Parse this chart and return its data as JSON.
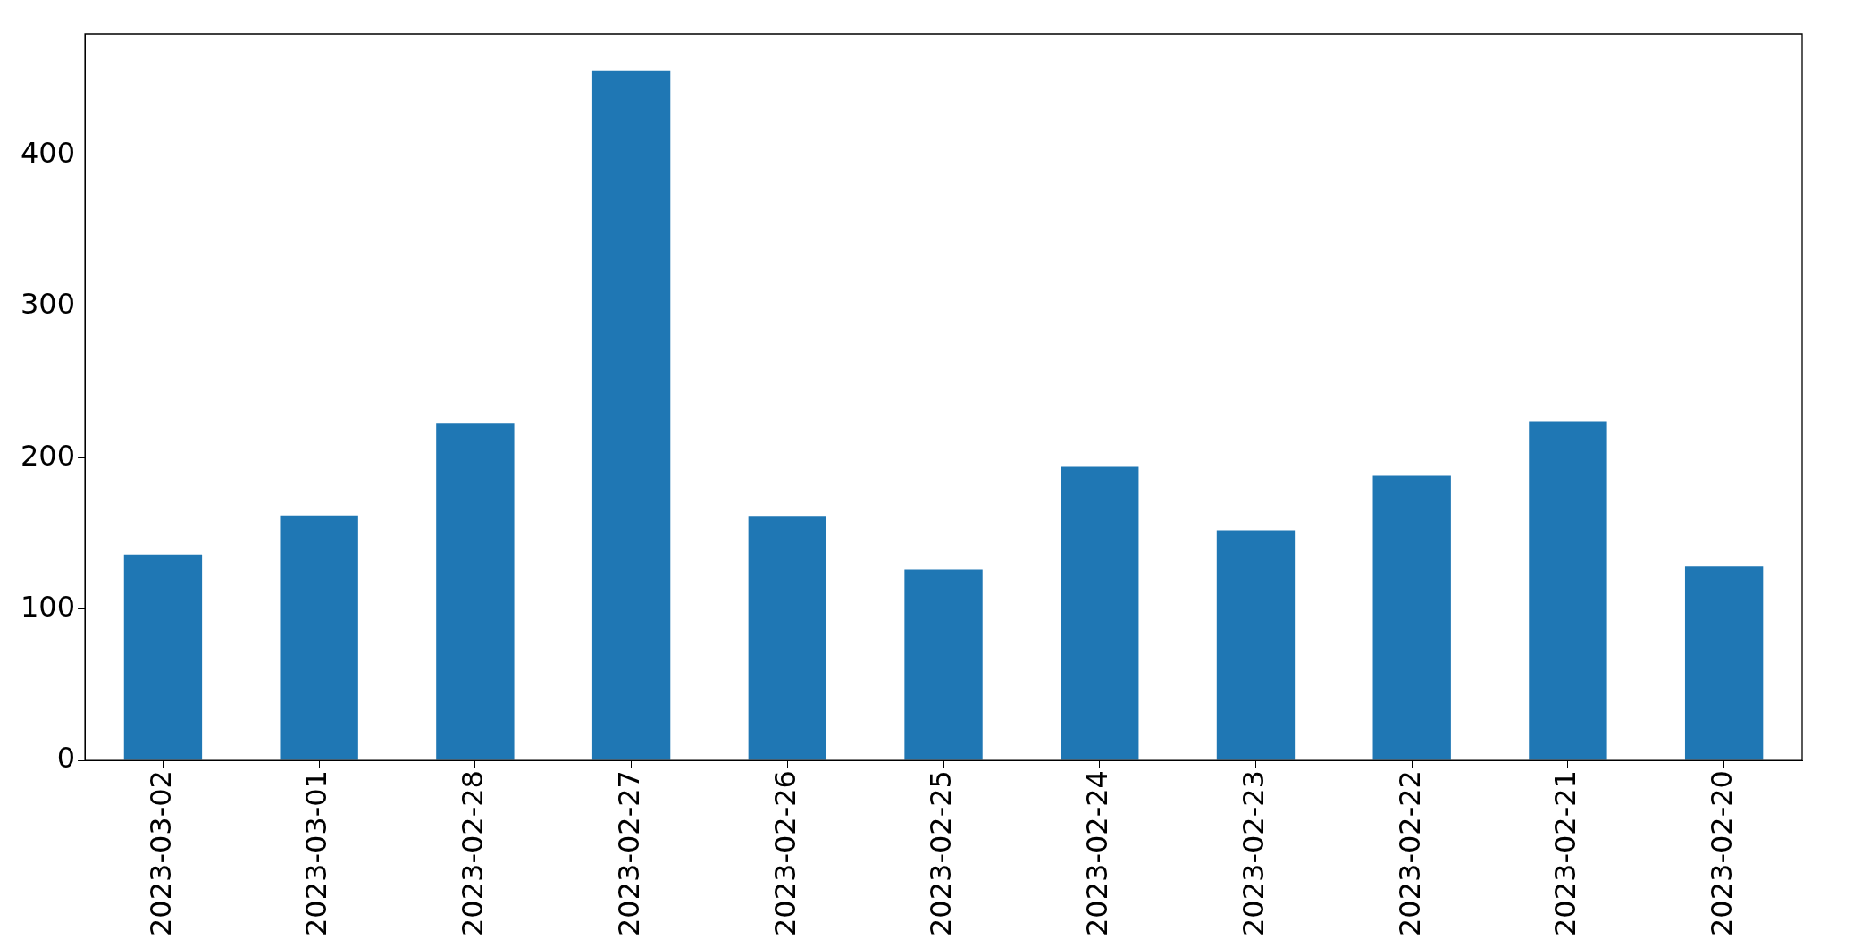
{
  "chart_data": {
    "type": "bar",
    "categories": [
      "2023-03-02",
      "2023-03-01",
      "2023-02-28",
      "2023-02-27",
      "2023-02-26",
      "2023-02-25",
      "2023-02-24",
      "2023-02-23",
      "2023-02-22",
      "2023-02-21",
      "2023-02-20"
    ],
    "values": [
      136,
      162,
      223,
      456,
      161,
      126,
      194,
      152,
      188,
      224,
      128
    ],
    "color": "#1f77b4",
    "ylim": [
      0,
      480
    ],
    "yticks": [
      0,
      100,
      200,
      300,
      400
    ],
    "grid": false,
    "legend": false
  }
}
